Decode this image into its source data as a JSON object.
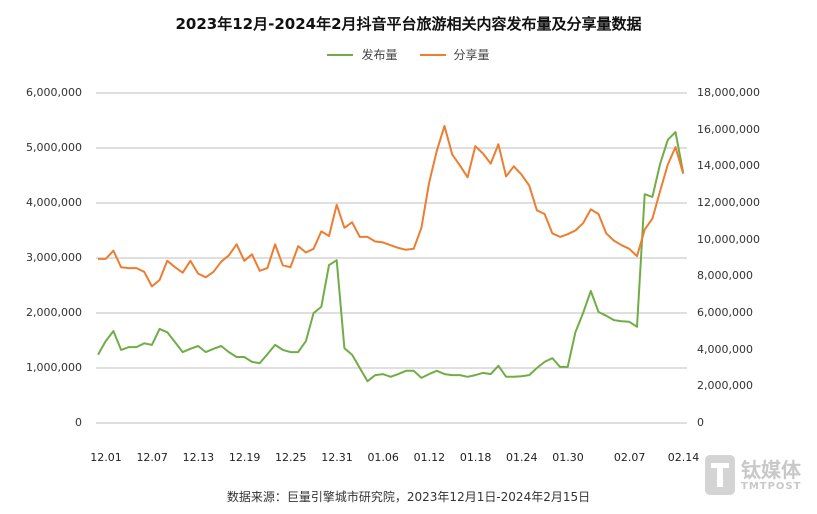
{
  "chart_data": {
    "type": "line",
    "title": "2023年12月-2024年2月抖音平台旅游相关内容发布量及分享量数据",
    "xlabel": "",
    "ylabel_left": "",
    "ylabel_right": "",
    "ylim_left": [
      0,
      6000000
    ],
    "ylim_right": [
      0,
      18000000
    ],
    "yticks_left": [
      "6,000,000",
      "5,000,000",
      "4,000,000",
      "3,000,000",
      "2,000,000",
      "1,000,000",
      "0"
    ],
    "yticks_right": [
      "18,000,000",
      "16,000,000",
      "14,000,000",
      "12,000,000",
      "10,000,000",
      "8,000,000",
      "6,000,000",
      "4,000,000",
      "2,000,000",
      "0"
    ],
    "xtick_labels": [
      "12.01",
      "12.07",
      "12.13",
      "12.19",
      "12.25",
      "12.31",
      "01.06",
      "01.12",
      "01.18",
      "01.24",
      "01.30",
      "02.07",
      "02.14"
    ],
    "xtick_index": [
      0,
      6,
      12,
      18,
      24,
      30,
      36,
      42,
      48,
      54,
      60,
      68,
      75
    ],
    "grid": true,
    "legend_position": "top",
    "series": [
      {
        "name": "发布量",
        "axis": "left",
        "color": "#70ad47",
        "values": [
          1240000,
          1490000,
          1670000,
          1330000,
          1380000,
          1380000,
          1450000,
          1420000,
          1710000,
          1650000,
          1470000,
          1290000,
          1350000,
          1400000,
          1290000,
          1350000,
          1400000,
          1290000,
          1200000,
          1200000,
          1110000,
          1090000,
          1250000,
          1420000,
          1330000,
          1290000,
          1290000,
          1490000,
          2000000,
          2110000,
          2870000,
          2960000,
          1360000,
          1240000,
          1000000,
          760000,
          870000,
          890000,
          840000,
          890000,
          950000,
          950000,
          820000,
          890000,
          950000,
          890000,
          870000,
          870000,
          840000,
          870000,
          910000,
          890000,
          1040000,
          840000,
          840000,
          850000,
          870000,
          1000000,
          1110000,
          1180000,
          1020000,
          1020000,
          1650000,
          2000000,
          2400000,
          2020000,
          1950000,
          1870000,
          1850000,
          1840000,
          1750000,
          4160000,
          4110000,
          4710000,
          5150000,
          5290000,
          4550000
        ]
      },
      {
        "name": "分享量",
        "axis": "right",
        "color": "#ed7d31",
        "values": [
          8950000,
          8950000,
          9400000,
          8500000,
          8450000,
          8450000,
          8250000,
          7450000,
          7800000,
          8850000,
          8500000,
          8200000,
          8850000,
          8150000,
          7950000,
          8250000,
          8800000,
          9150000,
          9750000,
          8850000,
          9200000,
          8300000,
          8450000,
          9750000,
          8600000,
          8500000,
          9650000,
          9300000,
          9500000,
          10450000,
          10200000,
          11900000,
          10650000,
          10950000,
          10150000,
          10150000,
          9900000,
          9850000,
          9700000,
          9550000,
          9450000,
          9500000,
          10650000,
          13100000,
          14850000,
          16200000,
          14650000,
          14050000,
          13400000,
          15100000,
          14700000,
          14150000,
          15200000,
          13450000,
          14000000,
          13550000,
          12950000,
          11600000,
          11400000,
          10350000,
          10150000,
          10300000,
          10500000,
          10900000,
          11650000,
          11400000,
          10350000,
          9950000,
          9700000,
          9500000,
          9100000,
          10550000,
          11150000,
          12650000,
          14100000,
          15050000,
          13600000
        ]
      }
    ]
  },
  "title": "2023年12月-2024年2月抖音平台旅游相关内容发布量及分享量数据",
  "legend": [
    {
      "label": "发布量",
      "color": "#70ad47"
    },
    {
      "label": "分享量",
      "color": "#ed7d31"
    }
  ],
  "source": "数据来源：巨量引擎城市研究院，2023年12月1日-2024年2月15日",
  "watermark": {
    "cn": "钛媒体",
    "en": "TMTPOST"
  }
}
